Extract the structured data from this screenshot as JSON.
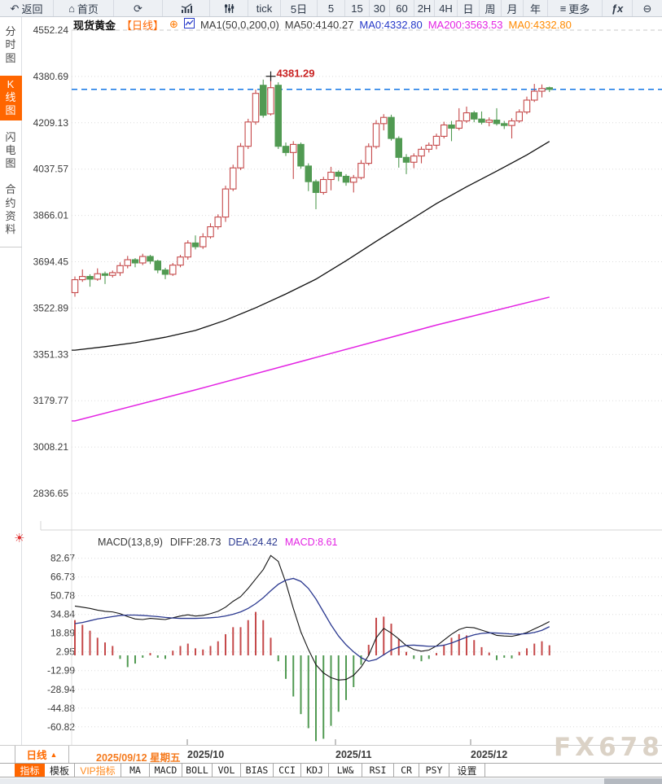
{
  "colors": {
    "accent_orange": "#ff6600",
    "light_orange": "#ff8a1e",
    "candle_up_red": "#c5494a",
    "candle_down_green": "#519a52",
    "last_price_blue": "#1577e6",
    "diff_black": "#141414",
    "dea_blue": "#2b3990",
    "ma200_magenta": "#e323e3",
    "annotation_red": "#c92222"
  },
  "toolbar": {
    "items": [
      {
        "name": "back",
        "label": "返回",
        "icon": "back-arrow"
      },
      {
        "name": "home",
        "label": "首页",
        "icon": "home"
      },
      {
        "name": "refresh",
        "icon": "refresh"
      },
      {
        "name": "bar-chart",
        "icon": "bar-chart"
      },
      {
        "name": "sliders",
        "icon": "sliders"
      },
      {
        "name": "tick",
        "label": "tick"
      },
      {
        "name": "5d",
        "label": "5日"
      },
      {
        "name": "5",
        "label": "5"
      },
      {
        "name": "15",
        "label": "15"
      },
      {
        "name": "30",
        "label": "30"
      },
      {
        "name": "60",
        "label": "60"
      },
      {
        "name": "2h",
        "label": "2H"
      },
      {
        "name": "4h",
        "label": "4H"
      },
      {
        "name": "day",
        "label": "日"
      },
      {
        "name": "week",
        "label": "周"
      },
      {
        "name": "month",
        "label": "月"
      },
      {
        "name": "year",
        "label": "年"
      },
      {
        "name": "more",
        "label": "更多",
        "icon": "menu"
      },
      {
        "name": "fx",
        "label": "ƒx",
        "style": "fx"
      },
      {
        "name": "zoom-out",
        "icon": "zoom-out"
      }
    ]
  },
  "sidebar": {
    "items": [
      {
        "name": "time-share",
        "label": "分时图",
        "selected": false
      },
      {
        "name": "candlestick",
        "label": "K线图",
        "selected": true
      },
      {
        "name": "lightning",
        "label": "闪电图",
        "selected": false
      },
      {
        "name": "contract-info",
        "label": "合约资料",
        "selected": false
      }
    ]
  },
  "chart_header": {
    "symbol": "现货黄金",
    "period_tag": "【日线】",
    "plus": "⊕",
    "ma_settings": "MA1(50,0,200,0)",
    "ma50": "MA50:4140.27",
    "ma0_blue": "MA0:4332.80",
    "ma200": "MA200:3563.53",
    "ma0_orange": "MA0:4332.80"
  },
  "macd_header": {
    "title": "MACD(13,8,9)",
    "diff": "DIFF:28.73",
    "dea": "DEA:24.42",
    "macd": "MACD:8.61"
  },
  "bottom": {
    "period_label": "日线",
    "period_arrow": "▲",
    "x_labels": [
      {
        "text": "2025/09/12 星期五",
        "highlight": true
      },
      {
        "text": "2025/10",
        "highlight": false
      },
      {
        "text": "2025/11",
        "highlight": false
      },
      {
        "text": "2025/12",
        "highlight": false
      }
    ],
    "watermark": "FX678",
    "tabs": [
      {
        "name": "indicator",
        "label": "指标",
        "active": true
      },
      {
        "name": "template",
        "label": "模板"
      },
      {
        "name": "vip-indicator",
        "label": "VIP指标",
        "vip": true
      },
      {
        "name": "ma",
        "label": "MA",
        "mono": true
      },
      {
        "name": "macd",
        "label": "MACD",
        "mono": true
      },
      {
        "name": "boll",
        "label": "BOLL",
        "mono": true
      },
      {
        "name": "vol",
        "label": "VOL",
        "mono": true
      },
      {
        "name": "bias",
        "label": "BIAS",
        "mono": true
      },
      {
        "name": "cci",
        "label": "CCI",
        "mono": true
      },
      {
        "name": "kdj",
        "label": "KDJ",
        "mono": true
      },
      {
        "name": "lw",
        "label": "LW&",
        "mono": true
      },
      {
        "name": "rsi",
        "label": "RSI",
        "mono": true
      },
      {
        "name": "cr",
        "label": "CR",
        "mono": true
      },
      {
        "name": "psy",
        "label": "PSY",
        "mono": true
      },
      {
        "name": "settings",
        "label": "设置"
      }
    ]
  },
  "chart_data": [
    {
      "type": "candlestick",
      "title": "现货黄金 日线",
      "y_ticks": [
        4552.24,
        4380.69,
        4209.13,
        4037.57,
        3866.01,
        3694.45,
        3522.89,
        3351.33,
        3179.77,
        3008.21,
        2836.65
      ],
      "x_labels": [
        "2025/09/12 星期五",
        "2025/10",
        "2025/11",
        "2025/12"
      ],
      "last_price": 4332.8,
      "high_annotation": {
        "index": 26,
        "value": 4381.29
      },
      "candles": [
        [
          3580,
          3640,
          3565,
          3628
        ],
        [
          3628,
          3666,
          3620,
          3640
        ],
        [
          3640,
          3648,
          3602,
          3630
        ],
        [
          3630,
          3670,
          3624,
          3650
        ],
        [
          3650,
          3658,
          3612,
          3644
        ],
        [
          3644,
          3662,
          3636,
          3654
        ],
        [
          3654,
          3692,
          3642,
          3680
        ],
        [
          3680,
          3716,
          3670,
          3702
        ],
        [
          3702,
          3708,
          3674,
          3690
        ],
        [
          3690,
          3724,
          3682,
          3714
        ],
        [
          3714,
          3720,
          3686,
          3697
        ],
        [
          3697,
          3702,
          3652,
          3664
        ],
        [
          3664,
          3672,
          3630,
          3648
        ],
        [
          3648,
          3690,
          3642,
          3682
        ],
        [
          3682,
          3720,
          3674,
          3712
        ],
        [
          3712,
          3774,
          3702,
          3764
        ],
        [
          3764,
          3792,
          3740,
          3750
        ],
        [
          3750,
          3800,
          3742,
          3787
        ],
        [
          3787,
          3837,
          3780,
          3824
        ],
        [
          3824,
          3870,
          3814,
          3860
        ],
        [
          3860,
          3976,
          3842,
          3964
        ],
        [
          3964,
          4054,
          3956,
          4042
        ],
        [
          4042,
          4134,
          4034,
          4122
        ],
        [
          4122,
          4224,
          4112,
          4212
        ],
        [
          4212,
          4332,
          4202,
          4318
        ],
        [
          4348,
          4369,
          4228,
          4237
        ],
        [
          4242,
          4381.29,
          4236,
          4339
        ],
        [
          4348,
          4359,
          4112,
          4122
        ],
        [
          4122,
          4136,
          4086,
          4099
        ],
        [
          4099,
          4141,
          4001,
          4129
        ],
        [
          4129,
          4136,
          4039,
          4049
        ],
        [
          4049,
          4059,
          3956,
          3991
        ],
        [
          3991,
          3999,
          3889,
          3951
        ],
        [
          3951,
          4009,
          3943,
          3999
        ],
        [
          3999,
          4046,
          3959,
          4026
        ],
        [
          4026,
          4033,
          3993,
          4011
        ],
        [
          4011,
          4019,
          3976,
          3989
        ],
        [
          3989,
          4016,
          3951,
          4006
        ],
        [
          4006,
          4071,
          3999,
          4059
        ],
        [
          4059,
          4133,
          4051,
          4121
        ],
        [
          4121,
          4219,
          4113,
          4206
        ],
        [
          4206,
          4241,
          4181,
          4229
        ],
        [
          4229,
          4239,
          4143,
          4151
        ],
        [
          4151,
          4159,
          4043,
          4081
        ],
        [
          4081,
          4093,
          4019,
          4063
        ],
        [
          4063,
          4096,
          4041,
          4086
        ],
        [
          4086,
          4121,
          4059,
          4111
        ],
        [
          4111,
          4136,
          4099,
          4126
        ],
        [
          4126,
          4169,
          4111,
          4159
        ],
        [
          4159,
          4213,
          4151,
          4201
        ],
        [
          4201,
          4216,
          4141,
          4189
        ],
        [
          4189,
          4263,
          4181,
          4216
        ],
        [
          4216,
          4269,
          4209,
          4246
        ],
        [
          4246,
          4253,
          4211,
          4223
        ],
        [
          4223,
          4251,
          4203,
          4211
        ],
        [
          4211,
          4229,
          4196,
          4219
        ],
        [
          4219,
          4263,
          4199,
          4206
        ],
        [
          4206,
          4216,
          4186,
          4199
        ],
        [
          4199,
          4226,
          4151,
          4216
        ],
        [
          4216,
          4259,
          4209,
          4249
        ],
        [
          4249,
          4306,
          4241,
          4293
        ],
        [
          4293,
          4353,
          4286,
          4326
        ],
        [
          4326,
          4351,
          4303,
          4336
        ],
        [
          4339,
          4343,
          4323,
          4332.8
        ]
      ],
      "ma50": {
        "name": "MA50",
        "value": 4140.27,
        "color": "#101010",
        "points": [
          [
            0,
            3367
          ],
          [
            4,
            3380
          ],
          [
            8,
            3395
          ],
          [
            12,
            3415
          ],
          [
            16,
            3440
          ],
          [
            20,
            3478
          ],
          [
            24,
            3524
          ],
          [
            28,
            3575
          ],
          [
            32,
            3630
          ],
          [
            36,
            3698
          ],
          [
            40,
            3770
          ],
          [
            44,
            3840
          ],
          [
            48,
            3910
          ],
          [
            52,
            3972
          ],
          [
            56,
            4030
          ],
          [
            60,
            4090
          ],
          [
            63,
            4140.27
          ]
        ]
      },
      "ma200": {
        "name": "MA200",
        "value": 3563.53,
        "color": "#e323e3",
        "points": [
          [
            0,
            3105
          ],
          [
            16,
            3220
          ],
          [
            32,
            3340
          ],
          [
            48,
            3460
          ],
          [
            63,
            3563.53
          ]
        ]
      }
    },
    {
      "type": "macd",
      "params": "MACD(13,8,9)",
      "y_ticks": [
        82.67,
        66.73,
        50.78,
        34.84,
        18.89,
        2.95,
        -12.99,
        -28.94,
        -44.88,
        -60.82
      ],
      "last": {
        "diff": 28.73,
        "dea": 24.42,
        "macd": 8.61
      },
      "hist": [
        30,
        26,
        21,
        15,
        11,
        8,
        -3,
        -10,
        -7,
        -2,
        2,
        -2,
        -3,
        4,
        8,
        10,
        6,
        5,
        8,
        12,
        18,
        24,
        24,
        30,
        37,
        30,
        15,
        -5,
        -20,
        -35,
        -50,
        -62,
        -73,
        -71,
        -60,
        -48,
        -38,
        -27,
        -8,
        9,
        32,
        33,
        27,
        14,
        3,
        -3,
        -5,
        -3,
        2,
        9,
        15,
        18,
        17,
        13,
        7,
        2.4,
        -4,
        -2,
        -2.6,
        3,
        6,
        10,
        12,
        8.6
      ],
      "diff": [
        42,
        41,
        40,
        38.5,
        37.5,
        37,
        35.5,
        33,
        31,
        30.5,
        31.5,
        31,
        30.5,
        32,
        33.5,
        34.5,
        33.5,
        34,
        35.5,
        37.5,
        41,
        46,
        50,
        57,
        65,
        73,
        85,
        80,
        62,
        40,
        20,
        5,
        -8,
        -15,
        -19,
        -21,
        -20.5,
        -17,
        -10,
        0,
        15,
        23,
        19,
        14,
        8.3,
        5,
        3.5,
        4.5,
        8,
        13,
        18,
        22,
        24,
        23.5,
        21.5,
        19.5,
        17,
        16.5,
        16.2,
        17.5,
        19.5,
        22.5,
        25.5,
        28.73
      ],
      "dea": [
        27,
        28,
        29.5,
        31,
        32,
        33,
        34,
        34.3,
        34.3,
        34,
        33.5,
        33,
        32.3,
        31.8,
        31.5,
        31.5,
        31.5,
        31.7,
        32,
        32.5,
        33.5,
        35,
        37,
        40,
        44,
        49,
        55,
        60.5,
        64,
        65.5,
        63,
        57,
        48,
        37,
        26,
        16.5,
        9,
        3,
        -2,
        -5,
        -3.5,
        0.5,
        4.5,
        7,
        8.5,
        8.7,
        8.2,
        7.7,
        7.8,
        8.7,
        10.5,
        13,
        15.5,
        17.5,
        18.7,
        19.2,
        19,
        18.6,
        18.2,
        18.1,
        18.5,
        19.5,
        21.3,
        24.42
      ]
    }
  ]
}
